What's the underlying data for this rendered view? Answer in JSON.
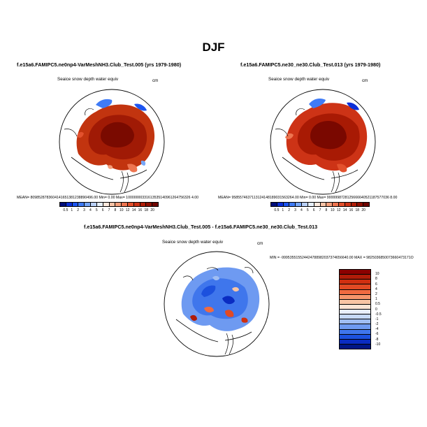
{
  "title": "DJF",
  "panels": [
    {
      "title": "f.e15a6.FAMIPC5.ne0np4-VarMeshNH3.Club_Test.005 (yrs 1979-1980)",
      "variable": "Seaice snow depth water equiv",
      "units": "cm",
      "stats": "MEAN= 8098528783604141651381238890496.00   Min=    0.00  Max= 10000000331613535140961264756326 4.00"
    },
    {
      "title": "f.e15a6.FAMIPC5.ne30_ne30.Club_Test.013 (yrs 1979-1980)",
      "variable": "Seaice snow depth water equiv",
      "units": "cm",
      "stats": "MEAN= 9585574637113124148189031563264.00   Min=    0.00  Max= 9999998728125666640521187577036 8.00"
    },
    {
      "title": "f.e15a6.FAMIPC5.ne0np4-VarMeshNH3.Club_Test.005 - f.e15a6.FAMIPC5.ne30_ne30.Club_Test.013",
      "variable": "Seaice snow depth water equiv",
      "units": "cm",
      "stats": "MIN = -999535515524424788982037374656640.00 MAX = 9825036850073660473171O"
    }
  ],
  "abs_colorbar": {
    "labels": [
      "0.5",
      "1",
      "2",
      "3",
      "4",
      "5",
      "6",
      "7",
      "8",
      "10",
      "12",
      "14",
      "16",
      "18",
      "20"
    ],
    "colors": [
      "#000e7a",
      "#0b2fd8",
      "#1d55f0",
      "#3f7bf6",
      "#76a6f8",
      "#b8cff6",
      "#e6effb",
      "#fce8dc",
      "#f9c4a7",
      "#f49e7a",
      "#ee7550",
      "#e3512d",
      "#cd3316",
      "#b01e09",
      "#8f0f02",
      "#6e0500"
    ]
  },
  "diff_colorbar": {
    "labels": [
      "10",
      "8",
      "6",
      "4",
      "2",
      "1",
      "0.5",
      "0",
      "-0.5",
      "-1",
      "-2",
      "-4",
      "-6",
      "-8",
      "-10"
    ],
    "colors": [
      "#8b0000",
      "#b01c09",
      "#cf2f10",
      "#e14a24",
      "#f06a40",
      "#f6966c",
      "#f9c5a4",
      "#fbe4d4",
      "#e8eefc",
      "#c5d8f7",
      "#9fbdf3",
      "#6e9af1",
      "#3f76ec",
      "#1c51de",
      "#0a2cc2",
      "#001685"
    ]
  }
}
